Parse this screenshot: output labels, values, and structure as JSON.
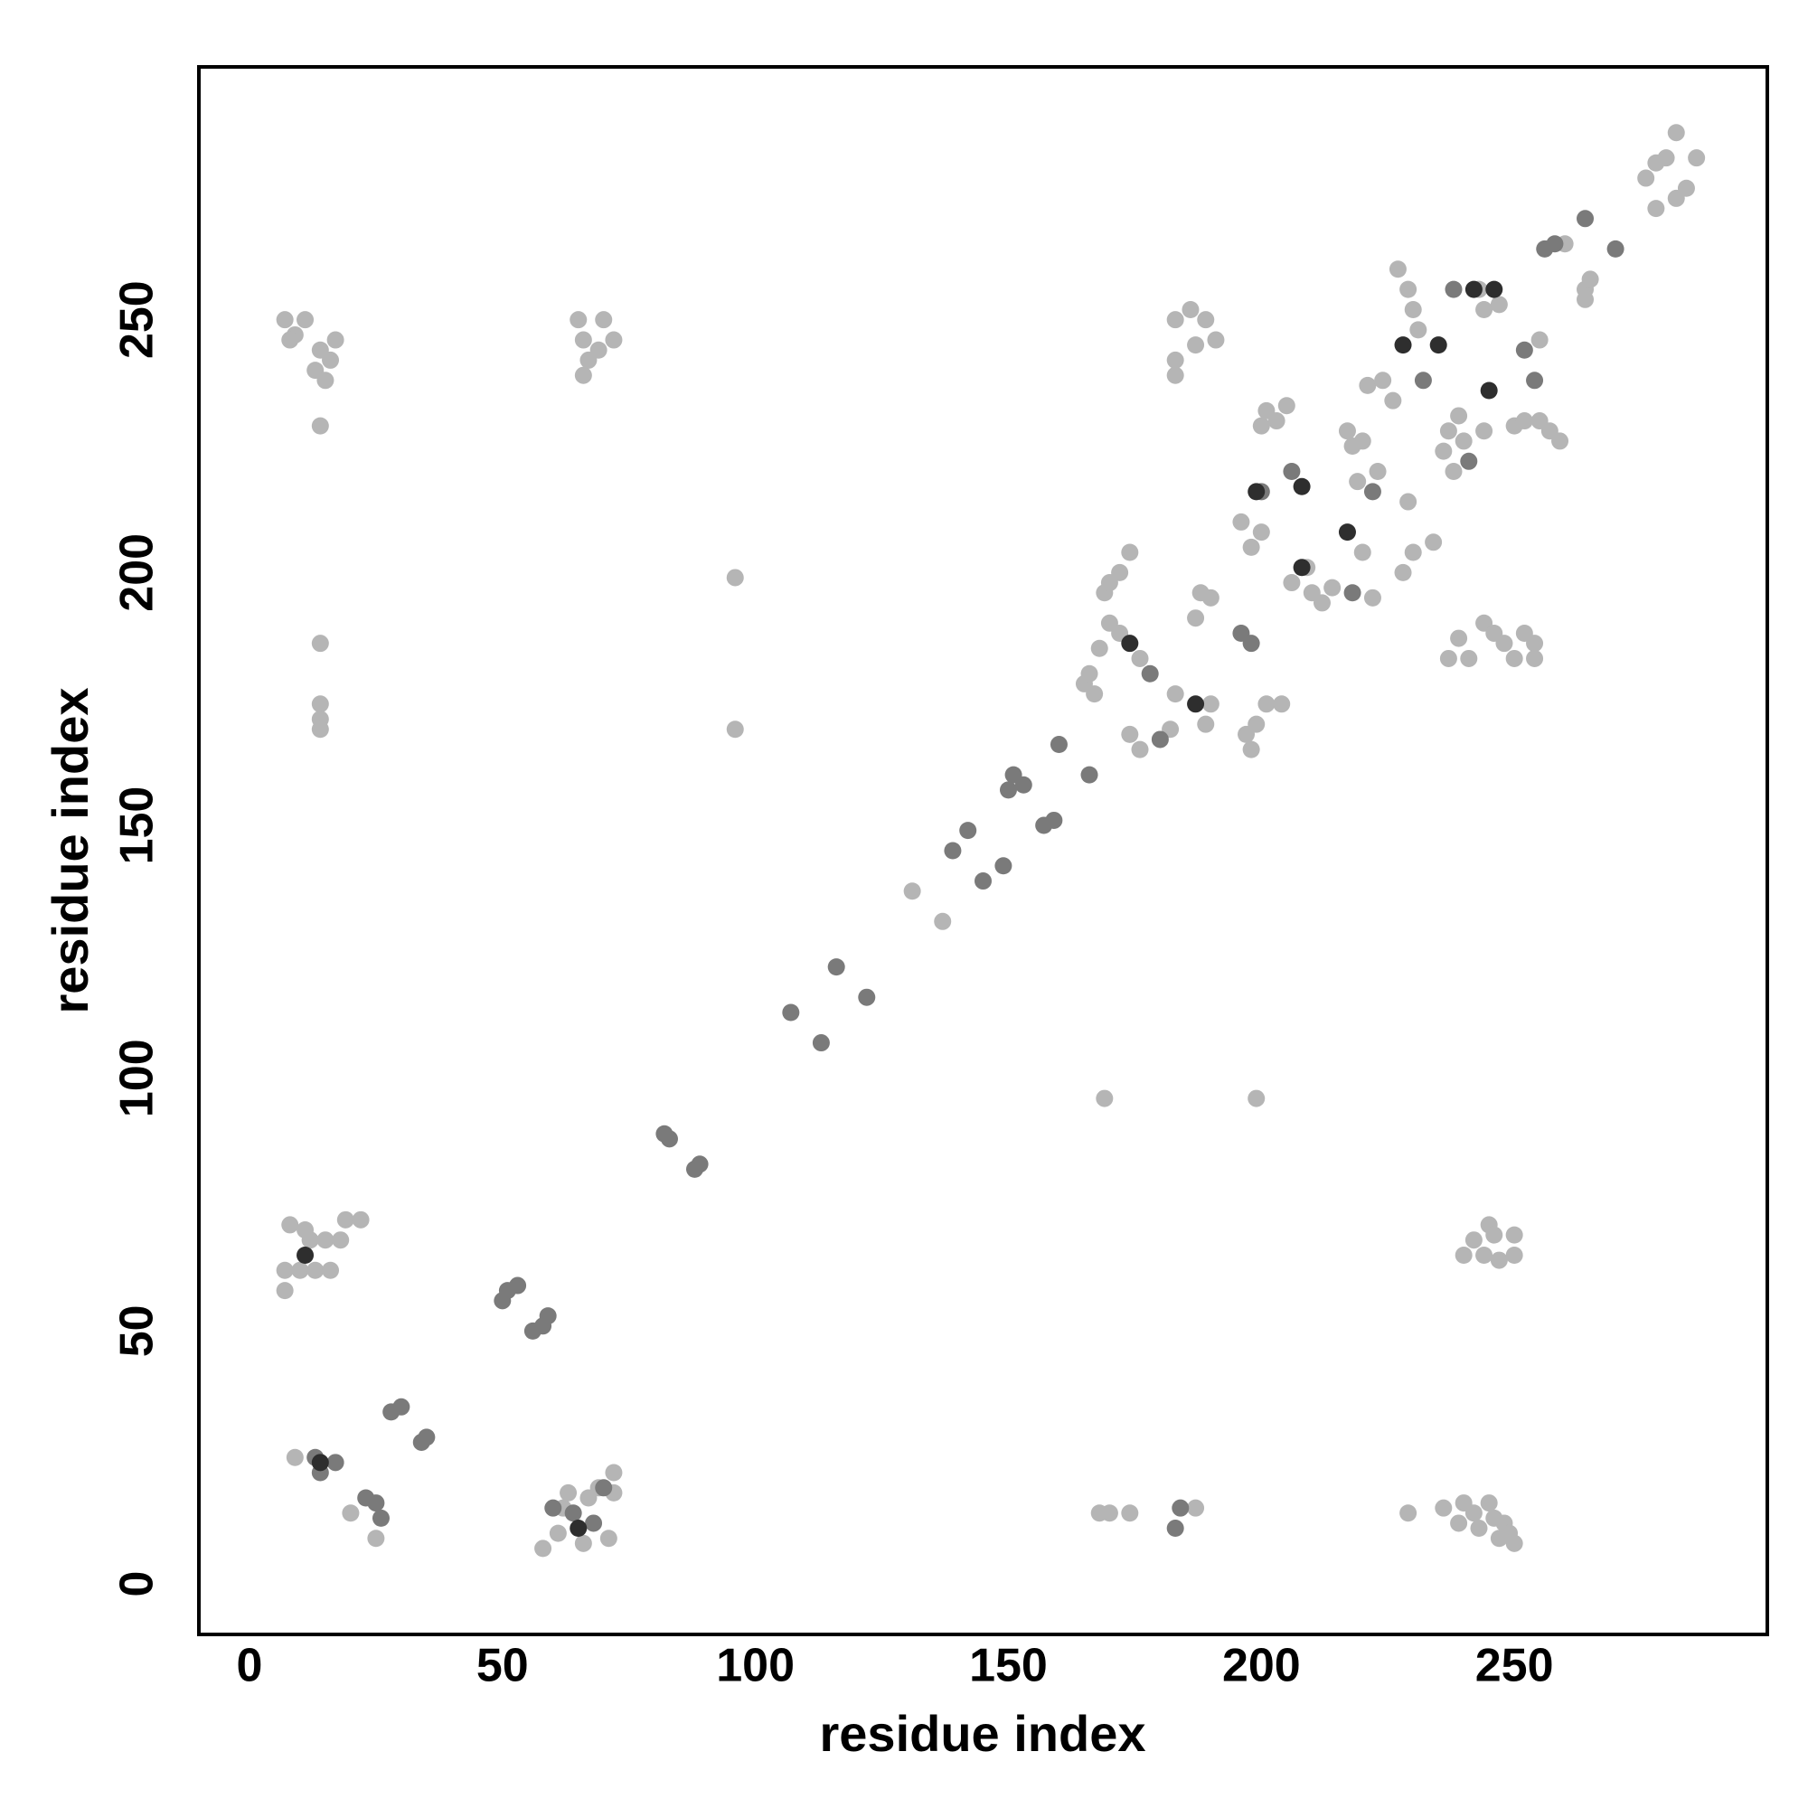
{
  "chart_data": {
    "type": "scatter",
    "x_label": "residue index",
    "y_label": "residue index",
    "xlim": [
      -10,
      300
    ],
    "ylim": [
      -10,
      300
    ],
    "xticks": [
      0,
      50,
      100,
      150,
      200,
      250
    ],
    "yticks": [
      0,
      50,
      100,
      150,
      200,
      250
    ],
    "grid": false,
    "series": [
      {
        "color": "#b5b5b5",
        "x": [
          7,
          7,
          8,
          10,
          12,
          13,
          15,
          16,
          18,
          19,
          22,
          11,
          7,
          9,
          11,
          13,
          14,
          15,
          16,
          17,
          14,
          8,
          14,
          14,
          14,
          14,
          65,
          66,
          67,
          69,
          70,
          72,
          66,
          9,
          20,
          25,
          58,
          61,
          62,
          63,
          66,
          67,
          69,
          71,
          72,
          72,
          96,
          96,
          131,
          137,
          165,
          166,
          167,
          168,
          169,
          170,
          172,
          174,
          170,
          172,
          176,
          174,
          176,
          182,
          183,
          189,
          188,
          190,
          187,
          190,
          197,
          199,
          201,
          204,
          198,
          200,
          196,
          198,
          200,
          201,
          203,
          205,
          209,
          210,
          212,
          214,
          206,
          220,
          222,
          183,
          183,
          183,
          186,
          187,
          189,
          191,
          217,
          218,
          220,
          219,
          223,
          221,
          224,
          226,
          227,
          229,
          230,
          231,
          228,
          230,
          234,
          229,
          236,
          237,
          238,
          239,
          240,
          244,
          243,
          244,
          247,
          250,
          252,
          255,
          257,
          259,
          255,
          237,
          239,
          241,
          244,
          246,
          248,
          250,
          252,
          254,
          254,
          169,
          199,
          168,
          170,
          174,
          187,
          229,
          236,
          239,
          240,
          242,
          243,
          245,
          246,
          247,
          248,
          249,
          250,
          240,
          242,
          244,
          245,
          246,
          247,
          250,
          250,
          260,
          264,
          265,
          264,
          276,
          278,
          280,
          282,
          282,
          284,
          286,
          278
        ],
        "values": [
          58,
          62,
          71,
          62,
          68,
          62,
          68,
          62,
          68,
          72,
          72,
          70,
          250,
          247,
          250,
          240,
          244,
          238,
          242,
          246,
          229,
          246,
          186,
          174,
          171,
          169,
          250,
          246,
          242,
          244,
          250,
          246,
          239,
          25,
          14,
          9,
          7,
          10,
          15,
          18,
          8,
          17,
          19,
          9,
          18,
          22,
          169,
          199,
          137,
          131,
          178,
          180,
          176,
          185,
          196,
          198,
          200,
          204,
          190,
          188,
          183,
          168,
          165,
          169,
          176,
          170,
          196,
          195,
          191,
          174,
          168,
          170,
          174,
          174,
          165,
          208,
          210,
          205,
          229,
          232,
          230,
          233,
          201,
          196,
          194,
          197,
          198,
          204,
          195,
          239,
          242,
          250,
          252,
          245,
          250,
          246,
          228,
          225,
          226,
          218,
          220,
          237,
          238,
          234,
          260,
          256,
          252,
          248,
          200,
          204,
          206,
          214,
          224,
          228,
          220,
          231,
          226,
          228,
          256,
          252,
          253,
          229,
          230,
          230,
          228,
          226,
          246,
          183,
          187,
          183,
          190,
          188,
          186,
          183,
          188,
          186,
          183,
          96,
          96,
          14,
          14,
          14,
          15,
          14,
          15,
          12,
          16,
          14,
          11,
          16,
          13,
          9,
          12,
          10,
          8,
          65,
          68,
          65,
          71,
          69,
          64,
          65,
          69,
          265,
          256,
          258,
          254,
          278,
          281,
          282,
          287,
          274,
          276,
          282,
          272
        ]
      },
      {
        "color": "#7a7a7a",
        "x": [
          50,
          51,
          53,
          56,
          58,
          59,
          82,
          83,
          88,
          89,
          107,
          113,
          116,
          122,
          139,
          142,
          145,
          149,
          150,
          151,
          153,
          157,
          159,
          160,
          166,
          13,
          14,
          17,
          23,
          25,
          26,
          28,
          30,
          34,
          35,
          60,
          64,
          68,
          70,
          178,
          180,
          196,
          198,
          200,
          206,
          218,
          222,
          232,
          238,
          241,
          252,
          254,
          183,
          184,
          264,
          270,
          256,
          258
        ],
        "values": [
          56,
          58,
          59,
          50,
          51,
          53,
          89,
          88,
          82,
          83,
          113,
          107,
          122,
          116,
          145,
          149,
          139,
          142,
          157,
          160,
          158,
          150,
          151,
          166,
          160,
          25,
          22,
          24,
          17,
          16,
          13,
          34,
          35,
          28,
          29,
          15,
          14,
          12,
          19,
          180,
          167,
          188,
          186,
          216,
          220,
          196,
          216,
          238,
          256,
          222,
          244,
          238,
          11,
          15,
          270,
          264,
          264,
          265
        ]
      },
      {
        "color": "#2e2e2e",
        "x": [
          11,
          65,
          174,
          187,
          208,
          217,
          245,
          228,
          235,
          14,
          199,
          208,
          242,
          246
        ],
        "values": [
          65,
          11,
          186,
          174,
          217,
          208,
          236,
          245,
          245,
          24,
          216,
          201,
          256,
          256
        ]
      }
    ]
  }
}
